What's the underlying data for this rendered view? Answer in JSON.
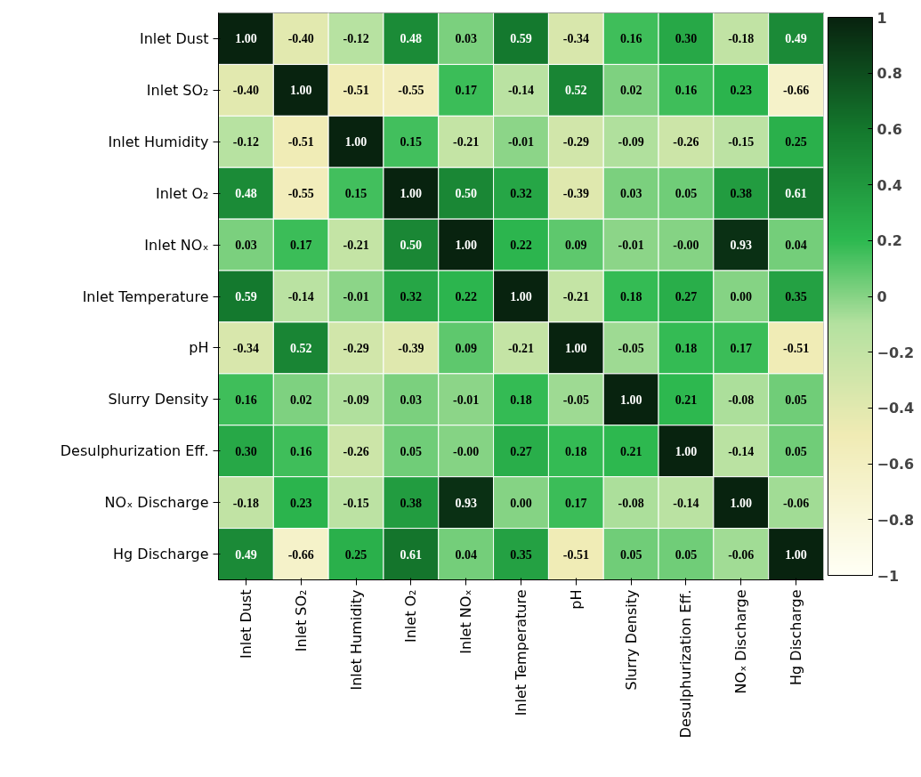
{
  "chart_data": {
    "type": "heatmap",
    "categories": [
      "Inlet Dust",
      "Inlet SO₂",
      "Inlet Humidity",
      "Inlet O₂",
      "Inlet NOₓ",
      "Inlet Temperature",
      "pH",
      "Slurry Density",
      "Desulphurization Eff.",
      "NOₓ Discharge",
      "Hg Discharge"
    ],
    "y_categories": [
      "Inlet Dust",
      "Inlet SO₂",
      "Inlet Humidity",
      "Inlet O₂",
      "Inlet NOₓ",
      "Inlet Temperature",
      "pH",
      "Slurry Density",
      "Desulphurization Eff.",
      "NOₓ Discharge",
      "Hg Discharge"
    ],
    "cells": [
      [
        1.0,
        -0.4,
        -0.12,
        0.48,
        0.03,
        0.59,
        -0.34,
        0.16,
        0.3,
        -0.18,
        0.49
      ],
      [
        -0.4,
        1.0,
        -0.51,
        -0.55,
        0.17,
        -0.14,
        0.52,
        0.02,
        0.16,
        0.23,
        -0.66
      ],
      [
        -0.12,
        -0.51,
        1.0,
        0.15,
        -0.21,
        -0.01,
        -0.29,
        -0.09,
        -0.26,
        -0.15,
        0.25
      ],
      [
        0.48,
        -0.55,
        0.15,
        1.0,
        0.5,
        0.32,
        -0.39,
        0.03,
        0.05,
        0.38,
        0.61
      ],
      [
        0.03,
        0.17,
        -0.21,
        0.5,
        1.0,
        0.22,
        0.09,
        -0.01,
        -0.0,
        0.93,
        0.04
      ],
      [
        0.59,
        -0.14,
        -0.01,
        0.32,
        0.22,
        1.0,
        -0.21,
        0.18,
        0.27,
        0.0,
        0.35
      ],
      [
        -0.34,
        0.52,
        -0.29,
        -0.39,
        0.09,
        -0.21,
        1.0,
        -0.05,
        0.18,
        0.17,
        -0.51
      ],
      [
        0.16,
        0.02,
        -0.09,
        0.03,
        -0.01,
        0.18,
        -0.05,
        1.0,
        0.21,
        -0.08,
        0.05
      ],
      [
        0.3,
        0.16,
        -0.26,
        0.05,
        -0.0,
        0.27,
        0.18,
        0.21,
        1.0,
        -0.14,
        0.05
      ],
      [
        -0.18,
        0.23,
        -0.15,
        0.38,
        0.93,
        0.0,
        0.17,
        -0.08,
        -0.14,
        1.0,
        -0.06
      ],
      [
        0.49,
        -0.66,
        0.25,
        0.61,
        0.04,
        0.35,
        -0.51,
        0.05,
        0.05,
        -0.06,
        1.0
      ]
    ],
    "cell_labels": [
      [
        "1.00",
        "-0.40",
        "-0.12",
        "0.48",
        "0.03",
        "0.59",
        "-0.34",
        "0.16",
        "0.30",
        "-0.18",
        "0.49"
      ],
      [
        "-0.40",
        "1.00",
        "-0.51",
        "-0.55",
        "0.17",
        "-0.14",
        "0.52",
        "0.02",
        "0.16",
        "0.23",
        "-0.66"
      ],
      [
        "-0.12",
        "-0.51",
        "1.00",
        "0.15",
        "-0.21",
        "-0.01",
        "-0.29",
        "-0.09",
        "-0.26",
        "-0.15",
        "0.25"
      ],
      [
        "0.48",
        "-0.55",
        "0.15",
        "1.00",
        "0.50",
        "0.32",
        "-0.39",
        "0.03",
        "0.05",
        "0.38",
        "0.61"
      ],
      [
        "0.03",
        "0.17",
        "-0.21",
        "0.50",
        "1.00",
        "0.22",
        "0.09",
        "-0.01",
        "-0.00",
        "0.93",
        "0.04"
      ],
      [
        "0.59",
        "-0.14",
        "-0.01",
        "0.32",
        "0.22",
        "1.00",
        "-0.21",
        "0.18",
        "0.27",
        "0.00",
        "0.35"
      ],
      [
        "-0.34",
        "0.52",
        "-0.29",
        "-0.39",
        "0.09",
        "-0.21",
        "1.00",
        "-0.05",
        "0.18",
        "0.17",
        "-0.51"
      ],
      [
        "0.16",
        "0.02",
        "-0.09",
        "0.03",
        "-0.01",
        "0.18",
        "-0.05",
        "1.00",
        "0.21",
        "-0.08",
        "0.05"
      ],
      [
        "0.30",
        "0.16",
        "-0.26",
        "0.05",
        "-0.00",
        "0.27",
        "0.18",
        "0.21",
        "1.00",
        "-0.14",
        "0.05"
      ],
      [
        "-0.18",
        "0.23",
        "-0.15",
        "0.38",
        "0.93",
        "0.00",
        "0.17",
        "-0.08",
        "-0.14",
        "1.00",
        "-0.06"
      ],
      [
        "0.49",
        "-0.66",
        "0.25",
        "0.61",
        "0.04",
        "0.35",
        "-0.51",
        "0.05",
        "0.05",
        "-0.06",
        "1.00"
      ]
    ],
    "clim": [
      -1,
      1
    ],
    "cticks": [
      -1,
      -0.8,
      -0.6,
      -0.4,
      -0.2,
      0,
      0.2,
      0.4,
      0.6,
      0.8,
      1
    ]
  }
}
